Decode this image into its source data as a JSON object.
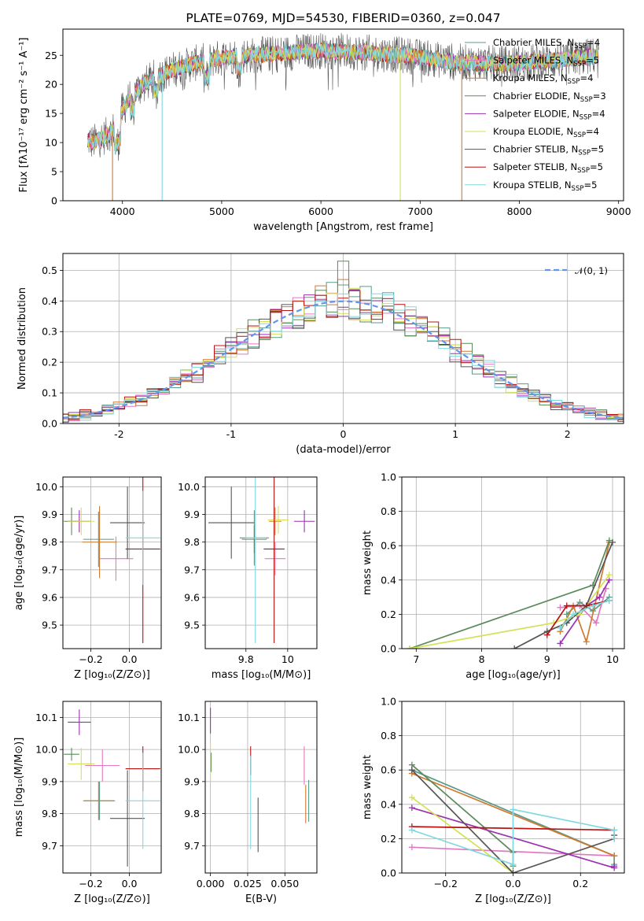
{
  "chart_data": [
    {
      "id": "spectrum",
      "type": "line",
      "title": "PLATE=0769, MJD=54530, FIBERID=0360, z=0.047",
      "xlabel": "wavelength [Angstrom, rest frame]",
      "ylabel": "Flux [fλ10⁻¹⁷ erg cm⁻² s⁻¹ A⁻¹]",
      "xlim": [
        3400,
        9050
      ],
      "ylim": [
        0,
        29.5
      ],
      "xticks": [
        4000,
        5000,
        6000,
        7000,
        8000,
        9000
      ],
      "yticks": [
        0,
        5,
        10,
        15,
        20,
        25
      ],
      "grid": false,
      "legend_loc": "upper right",
      "series": [
        {
          "name": "Chabrier MILES, N_SSP=4",
          "color": "#5a9a8a"
        },
        {
          "name": "Salpeter MILES, N_SSP=5",
          "color": "#e377c2"
        },
        {
          "name": "Kroupa MILES, N_SSP=4",
          "color": "#d07a30"
        },
        {
          "name": "Chabrier ELODIE, N_SSP=3",
          "color": "#5b8a5b"
        },
        {
          "name": "Salpeter ELODIE, N_SSP=4",
          "color": "#9b30b0"
        },
        {
          "name": "Kroupa ELODIE, N_SSP=4",
          "color": "#d4e157"
        },
        {
          "name": "Chabrier STELIB, N_SSP=5",
          "color": "#555555"
        },
        {
          "name": "Salpeter STELIB, N_SSP=5",
          "color": "#b81414"
        },
        {
          "name": "Kroupa STELIB, N_SSP=5",
          "color": "#7fd8e0"
        }
      ],
      "continuum": {
        "x": [
          3650,
          3700,
          3800,
          3900,
          4000,
          4100,
          4300,
          4500,
          4700,
          4900,
          5100,
          5300,
          5500,
          5800,
          6000,
          6300,
          6600,
          6900,
          7200,
          7500,
          7800,
          8100,
          8400,
          8700,
          8800
        ],
        "y": [
          10.5,
          10.0,
          10.8,
          12.0,
          15.5,
          18.5,
          21.0,
          22.5,
          23.5,
          24.3,
          24.8,
          25.0,
          25.2,
          25.6,
          25.8,
          25.6,
          25.3,
          24.9,
          24.2,
          23.7,
          23.5,
          23.8,
          24.2,
          24.8,
          25.0
        ]
      },
      "dropouts": [
        {
          "x": 3900,
          "series": 2
        },
        {
          "x": 4400,
          "series": 8
        },
        {
          "x": 6800,
          "series": 5
        },
        {
          "x": 7420,
          "series": 2
        }
      ]
    },
    {
      "id": "residuals",
      "type": "histogram",
      "xlabel": "(data-model)/error",
      "ylabel": "Normed distribution",
      "xlim": [
        -2.5,
        2.5
      ],
      "ylim": [
        0,
        0.555
      ],
      "xticks": [
        -2,
        -1,
        0,
        1,
        2
      ],
      "yticks": [
        0.0,
        0.1,
        0.2,
        0.3,
        0.4,
        0.5
      ],
      "grid": true,
      "legend_loc": "upper right",
      "gaussian_label": "𝒩(0, 1)",
      "gaussian_color": "#6495ed",
      "bin_width": 0.1
    },
    {
      "id": "age-vs-Z",
      "type": "errorbar",
      "xlabel": "Z [log₁₀(Z/Z⊙)]",
      "ylabel": "age  [log₁₀(age/yr)]",
      "xlim": [
        -0.345,
        0.165
      ],
      "ylim": [
        9.415,
        10.035
      ],
      "xticks": [
        -0.2,
        0.0
      ],
      "xticklabels": [
        "−0.2",
        "0.0"
      ],
      "yticks": [
        9.5,
        9.6,
        9.7,
        9.8,
        9.9,
        10.0
      ],
      "grid": true,
      "points": [
        {
          "s": 0,
          "x": -0.16,
          "y": 9.81,
          "xerr": 0.08,
          "yerr": 0.1
        },
        {
          "s": 1,
          "x": -0.07,
          "y": 9.74,
          "xerr": 0.09,
          "yerr": 0.08
        },
        {
          "s": 2,
          "x": -0.155,
          "y": 9.8,
          "xerr": 0.09,
          "yerr": 0.13
        },
        {
          "s": 3,
          "x": -0.3,
          "y": 9.875,
          "xerr": 0.04,
          "yerr": 0.05
        },
        {
          "s": 4,
          "x": -0.26,
          "y": 9.875,
          "xerr": 0.06,
          "yerr": 0.04
        },
        {
          "s": 5,
          "x": -0.25,
          "y": 9.875,
          "xerr": 0.07,
          "yerr": 0.05
        },
        {
          "s": 6,
          "x": -0.01,
          "y": 9.87,
          "xerr": 0.09,
          "yerr": 0.13
        },
        {
          "s": 7,
          "x": 0.07,
          "y": 9.775,
          "xerr": 0.09,
          "yerr": 0.34
        },
        {
          "s": 8,
          "x": 0.07,
          "y": 9.815,
          "xerr": 0.09,
          "yerr": 0.17
        }
      ]
    },
    {
      "id": "age-vs-mass",
      "type": "errorbar",
      "xlabel": "mass [log₁₀(M/M⊙)]",
      "ylabel": "",
      "xlim": [
        9.605,
        10.14
      ],
      "ylim": [
        9.415,
        10.035
      ],
      "xticks": [
        9.8,
        10.0
      ],
      "yticks": [
        9.5,
        9.6,
        9.7,
        9.8,
        9.9,
        10.0
      ],
      "grid": true,
      "points": [
        {
          "s": 0,
          "x": 9.84,
          "y": 9.815,
          "xerr": 0.07,
          "yerr": 0.1
        },
        {
          "s": 1,
          "x": 9.94,
          "y": 9.74,
          "xerr": 0.05,
          "yerr": 0.06
        },
        {
          "s": 2,
          "x": 9.94,
          "y": 9.875,
          "xerr": 0.03,
          "yerr": 0.05
        },
        {
          "s": 3,
          "x": 9.84,
          "y": 9.81,
          "xerr": 0.06,
          "yerr": 0.05
        },
        {
          "s": 4,
          "x": 10.08,
          "y": 9.875,
          "xerr": 0.05,
          "yerr": 0.04
        },
        {
          "s": 5,
          "x": 9.955,
          "y": 9.88,
          "xerr": 0.05,
          "yerr": 0.05
        },
        {
          "s": 6,
          "x": 9.73,
          "y": 9.87,
          "xerr": 0.11,
          "yerr": 0.13
        },
        {
          "s": 7,
          "x": 9.935,
          "y": 9.775,
          "xerr": 0.05,
          "yerr": 0.34
        },
        {
          "s": 8,
          "x": 9.845,
          "y": 9.815,
          "xerr": 0.05,
          "yerr": 0.38
        }
      ]
    },
    {
      "id": "weight-vs-age",
      "type": "line",
      "xlabel": "age  [log₁₀(age/yr)]",
      "ylabel": "mass weight",
      "xlim": [
        6.78,
        10.18
      ],
      "ylim": [
        0,
        1.0
      ],
      "xticks": [
        7,
        8,
        9,
        10
      ],
      "yticks": [
        0.0,
        0.2,
        0.4,
        0.6,
        0.8,
        1.0
      ],
      "grid": true,
      "series": [
        {
          "s": 0,
          "x": [
            9.3,
            9.5,
            9.7,
            9.95
          ],
          "y": [
            0.2,
            0.27,
            0.22,
            0.3
          ]
        },
        {
          "s": 1,
          "x": [
            9.2,
            9.5,
            9.75,
            9.9
          ],
          "y": [
            0.24,
            0.25,
            0.15,
            0.35
          ]
        },
        {
          "s": 2,
          "x": [
            9.2,
            9.4,
            9.6,
            9.95
          ],
          "y": [
            0.1,
            0.25,
            0.04,
            0.62
          ]
        },
        {
          "s": 3,
          "x": [
            6.9,
            9.7,
            9.95
          ],
          "y": [
            0.0,
            0.37,
            0.63
          ]
        },
        {
          "s": 4,
          "x": [
            9.2,
            9.6,
            9.8,
            9.95
          ],
          "y": [
            0.03,
            0.25,
            0.3,
            0.4
          ]
        },
        {
          "s": 5,
          "x": [
            6.9,
            9.1,
            9.5,
            9.95
          ],
          "y": [
            0.0,
            0.15,
            0.2,
            0.43
          ]
        },
        {
          "s": 6,
          "x": [
            8.5,
            9.0,
            9.3,
            9.6,
            10.0
          ],
          "y": [
            0.0,
            0.1,
            0.15,
            0.25,
            0.62
          ]
        },
        {
          "s": 7,
          "x": [
            9.0,
            9.3,
            9.6,
            9.95
          ],
          "y": [
            0.08,
            0.25,
            0.25,
            0.28
          ]
        },
        {
          "s": 8,
          "x": [
            9.2,
            9.4,
            9.7,
            9.95
          ],
          "y": [
            0.12,
            0.2,
            0.25,
            0.28
          ]
        }
      ]
    },
    {
      "id": "mass-vs-Z",
      "type": "errorbar",
      "xlabel": "Z [log₁₀(Z/Z⊙)]",
      "ylabel": "mass [log₁₀(M/M⊙)]",
      "xlim": [
        -0.345,
        0.165
      ],
      "ylim": [
        9.615,
        10.15
      ],
      "xticks": [
        -0.2,
        0.0
      ],
      "xticklabels": [
        "−0.2",
        "0.0"
      ],
      "yticks": [
        9.7,
        9.8,
        9.9,
        10.0,
        10.1
      ],
      "grid": true,
      "points": [
        {
          "s": 0,
          "x": -0.155,
          "y": 9.84,
          "xerr": 0.08,
          "yerr": 0.06
        },
        {
          "s": 1,
          "x": -0.14,
          "y": 9.95,
          "xerr": 0.09,
          "yerr": 0.05
        },
        {
          "s": 2,
          "x": -0.16,
          "y": 9.84,
          "xerr": 0.08,
          "yerr": 0.06
        },
        {
          "s": 3,
          "x": -0.3,
          "y": 9.985,
          "xerr": 0.04,
          "yerr": 0.02
        },
        {
          "s": 4,
          "x": -0.26,
          "y": 10.085,
          "xerr": 0.06,
          "yerr": 0.04
        },
        {
          "s": 5,
          "x": -0.25,
          "y": 9.955,
          "xerr": 0.07,
          "yerr": 0.05
        },
        {
          "s": 6,
          "x": -0.01,
          "y": 9.785,
          "xerr": 0.09,
          "yerr": 0.15
        },
        {
          "s": 7,
          "x": 0.07,
          "y": 9.94,
          "xerr": 0.09,
          "yerr": 0.07
        },
        {
          "s": 8,
          "x": 0.07,
          "y": 9.84,
          "xerr": 0.09,
          "yerr": 0.15
        }
      ]
    },
    {
      "id": "mass-vs-ebv",
      "type": "errorbar",
      "xlabel": "E(B-V)",
      "ylabel": "",
      "xlim": [
        -0.0035,
        0.0715
      ],
      "ylim": [
        9.615,
        10.15
      ],
      "xticks": [
        0.0,
        0.025,
        0.05
      ],
      "xticklabels": [
        "0.000",
        "0.025",
        "0.050"
      ],
      "yticks": [
        9.7,
        9.8,
        9.9,
        10.0,
        10.1
      ],
      "grid": true,
      "points": [
        {
          "s": 0,
          "x": 0.066,
          "y": 9.84,
          "xerr": 0,
          "yerr": 0.065
        },
        {
          "s": 1,
          "x": 0.063,
          "y": 9.95,
          "xerr": 0,
          "yerr": 0.06
        },
        {
          "s": 2,
          "x": 0.064,
          "y": 9.83,
          "xerr": 0,
          "yerr": 0.06
        },
        {
          "s": 3,
          "x": 0.0005,
          "y": 9.96,
          "xerr": 0,
          "yerr": 0.03
        },
        {
          "s": 4,
          "x": 0.0,
          "y": 10.09,
          "xerr": 0,
          "yerr": 0.04
        },
        {
          "s": 5,
          "x": 0.0,
          "y": 9.96,
          "xerr": 0,
          "yerr": 0.06
        },
        {
          "s": 6,
          "x": 0.032,
          "y": 9.765,
          "xerr": 0,
          "yerr": 0.085
        },
        {
          "s": 7,
          "x": 0.027,
          "y": 9.965,
          "xerr": 0,
          "yerr": 0.045
        },
        {
          "s": 8,
          "x": 0.027,
          "y": 9.835,
          "xerr": 0,
          "yerr": 0.145
        }
      ]
    },
    {
      "id": "weight-vs-Z",
      "type": "line",
      "xlabel": "Z [log₁₀(Z/Z⊙)]",
      "ylabel": "mass weight",
      "xlim": [
        -0.33,
        0.33
      ],
      "ylim": [
        0,
        1.0
      ],
      "xticks": [
        -0.2,
        0.0,
        0.2
      ],
      "xticklabels": [
        "−0.2",
        "0.0",
        "0.2"
      ],
      "yticks": [
        0.0,
        0.2,
        0.4,
        0.6,
        0.8,
        1.0
      ],
      "grid": true,
      "series": [
        {
          "s": 0,
          "x": [
            -0.3,
            -0.3,
            0.3,
            0.3
          ],
          "y": [
            0.6,
            0.6,
            0.1,
            0.05
          ]
        },
        {
          "s": 1,
          "x": [
            -0.3,
            0.3,
            0.3
          ],
          "y": [
            0.15,
            0.1,
            0.1
          ]
        },
        {
          "s": 2,
          "x": [
            -0.3,
            0.3,
            0.3
          ],
          "y": [
            0.58,
            0.1,
            0.1
          ]
        },
        {
          "s": 3,
          "x": [
            -0.3,
            0.0,
            0.0
          ],
          "y": [
            0.63,
            0.12,
            0.04
          ]
        },
        {
          "s": 4,
          "x": [
            -0.3,
            0.3,
            0.3
          ],
          "y": [
            0.38,
            0.03,
            0.04
          ]
        },
        {
          "s": 5,
          "x": [
            -0.3,
            0.0
          ],
          "y": [
            0.44,
            0.0
          ]
        },
        {
          "s": 6,
          "x": [
            -0.3,
            0.0,
            0.3,
            0.3
          ],
          "y": [
            0.6,
            0.0,
            0.2,
            0.22
          ]
        },
        {
          "s": 7,
          "x": [
            -0.3,
            0.3
          ],
          "y": [
            0.27,
            0.25
          ]
        },
        {
          "s": 8,
          "x": [
            -0.3,
            0.0,
            0.0,
            0.3,
            0.3
          ],
          "y": [
            0.25,
            0.05,
            0.37,
            0.25,
            0.2
          ]
        }
      ]
    }
  ]
}
